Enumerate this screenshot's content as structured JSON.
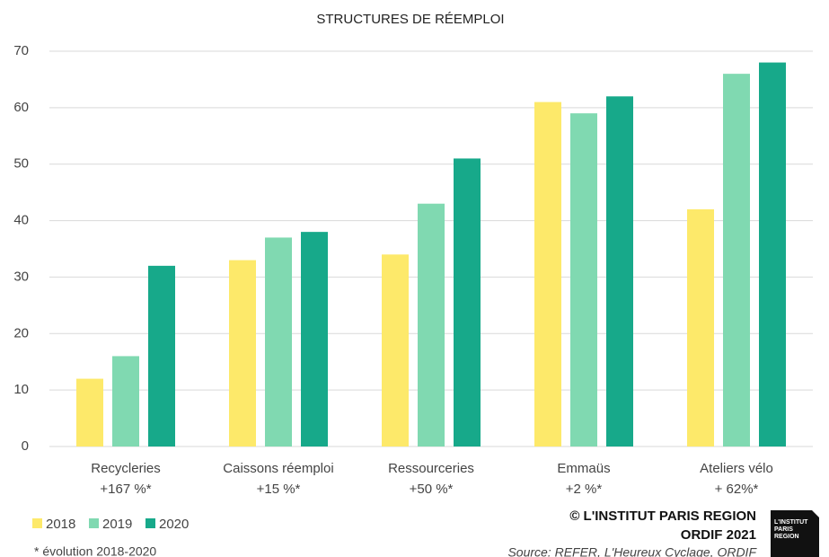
{
  "chart_data": {
    "type": "bar",
    "title": "STRUCTURES DE RÉEMPLOI",
    "categories": [
      "Recycleries",
      "Caissons réemploi",
      "Ressourceries",
      "Emmaüs",
      "Ateliers vélo"
    ],
    "changes": [
      "+167 %*",
      "+15 %*",
      "+50 %*",
      "+2 %*",
      "+ 62%*"
    ],
    "series": [
      {
        "name": "2018",
        "color": "#fde96a",
        "values": [
          12,
          33,
          34,
          61,
          42
        ]
      },
      {
        "name": "2019",
        "color": "#80d9b1",
        "values": [
          16,
          37,
          43,
          59,
          66
        ]
      },
      {
        "name": "2020",
        "color": "#17a98a",
        "values": [
          32,
          38,
          51,
          62,
          68
        ]
      }
    ],
    "ylim": [
      0,
      70
    ],
    "yticks": [
      0,
      10,
      20,
      30,
      40,
      50,
      60,
      70
    ],
    "grid": true,
    "footnote": "* évolution 2018-2020",
    "credit": "© L'INSTITUT PARIS REGION",
    "credit2": "ORDIF 2021",
    "source": "Source: REFER, L'Heureux Cyclage, ORDIF",
    "logo": [
      "L'INSTITUT",
      "PARIS",
      "REGION"
    ]
  }
}
